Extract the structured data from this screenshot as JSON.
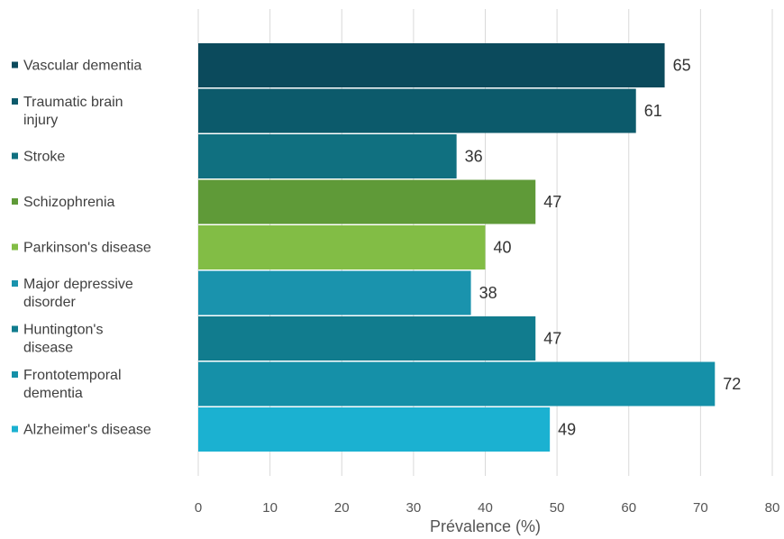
{
  "chart_data": {
    "type": "bar",
    "orientation": "horizontal",
    "categories": [
      "Vascular dementia",
      "Traumatic brain injury",
      "Stroke",
      "Schizophrenia",
      "Parkinson's disease",
      "Major depressive disorder",
      "Huntington's disease",
      "Frontotemporal dementia",
      "Alzheimer's disease"
    ],
    "category_label_lines": [
      [
        "Vascular dementia"
      ],
      [
        "Traumatic brain",
        "injury"
      ],
      [
        "Stroke"
      ],
      [
        "Schizophrenia"
      ],
      [
        "Parkinson's disease"
      ],
      [
        "Major depressive",
        "disorder"
      ],
      [
        "Huntington's",
        "disease"
      ],
      [
        "Frontotemporal",
        "dementia"
      ],
      [
        "Alzheimer's disease"
      ]
    ],
    "values": [
      65,
      61,
      36,
      47,
      40,
      38,
      47,
      72,
      49
    ],
    "colors": [
      "#0b4a5c",
      "#0c5a6b",
      "#107080",
      "#5f9a38",
      "#82bd45",
      "#1a93ad",
      "#117c8e",
      "#1590a8",
      "#1bb1d1"
    ],
    "xlabel": "Prévalence (%)",
    "ylabel": "",
    "xlim": [
      0,
      80
    ],
    "xticks": [
      0,
      10,
      20,
      30,
      40,
      50,
      60,
      70,
      80
    ],
    "grid": "vertical",
    "legend": "none"
  }
}
